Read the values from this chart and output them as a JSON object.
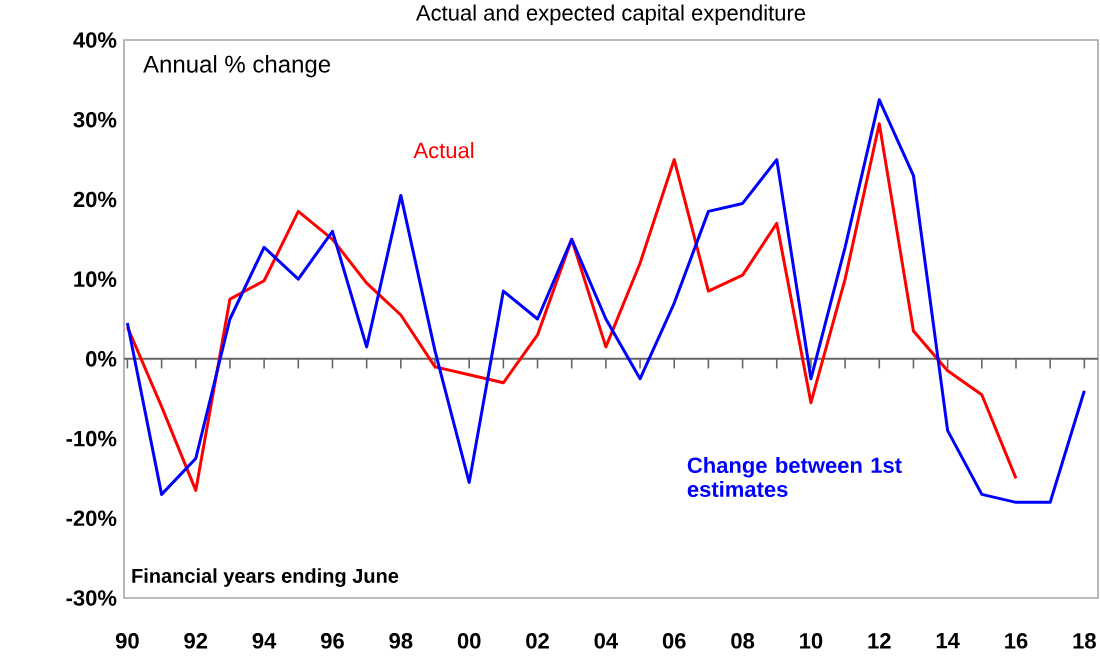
{
  "chart_data": {
    "type": "line",
    "title": "Actual and expected capital expenditure",
    "annotations": [
      "Annual % change",
      "Financial years ending June"
    ],
    "x": [
      1990,
      1991,
      1992,
      1993,
      1994,
      1995,
      1996,
      1997,
      1998,
      1999,
      2000,
      2001,
      2002,
      2003,
      2004,
      2005,
      2006,
      2007,
      2008,
      2009,
      2010,
      2011,
      2012,
      2013,
      2014,
      2015,
      2016,
      2017,
      2018
    ],
    "series": [
      {
        "name": "Actual",
        "color": "#ff0000",
        "values": [
          4,
          -6,
          -16.5,
          7.5,
          9.8,
          18.5,
          15,
          9.5,
          5.5,
          -1,
          -2,
          -3,
          3,
          15,
          1.5,
          12,
          25,
          8.5,
          10.5,
          17,
          -5.5,
          10,
          29.5,
          3.5,
          -1.5,
          -4.5,
          -15,
          null,
          null
        ]
      },
      {
        "name": "Change between 1st estimates",
        "color": "#0000ff",
        "values": [
          4.5,
          -17,
          -12.5,
          5,
          14,
          10,
          16,
          1.5,
          20.5,
          1,
          -15.5,
          8.5,
          5,
          15,
          5,
          -2.5,
          7,
          18.5,
          19.5,
          25,
          -2.5,
          14,
          32.5,
          23,
          -9,
          -17,
          -18,
          -18,
          -4
        ]
      }
    ],
    "xlim": [
      1989.9,
      2018.4
    ],
    "ylim": [
      -30,
      40
    ],
    "xticks": [
      {
        "value": 1990,
        "label": "90"
      },
      {
        "value": 1992,
        "label": "92"
      },
      {
        "value": 1994,
        "label": "94"
      },
      {
        "value": 1996,
        "label": "96"
      },
      {
        "value": 1998,
        "label": "98"
      },
      {
        "value": 2000,
        "label": "00"
      },
      {
        "value": 2002,
        "label": "02"
      },
      {
        "value": 2004,
        "label": "04"
      },
      {
        "value": 2006,
        "label": "06"
      },
      {
        "value": 2008,
        "label": "08"
      },
      {
        "value": 2010,
        "label": "10"
      },
      {
        "value": 2012,
        "label": "12"
      },
      {
        "value": 2014,
        "label": "14"
      },
      {
        "value": 2016,
        "label": "16"
      },
      {
        "value": 2018,
        "label": "18"
      }
    ],
    "yticks": [
      {
        "value": -30,
        "label": "-30%"
      },
      {
        "value": -20,
        "label": "-20%"
      },
      {
        "value": -10,
        "label": "-10%"
      },
      {
        "value": 0,
        "label": "0%"
      },
      {
        "value": 10,
        "label": "10%"
      },
      {
        "value": 20,
        "label": "20%"
      },
      {
        "value": 30,
        "label": "30%"
      },
      {
        "value": 40,
        "label": "40%"
      }
    ],
    "ref_lines": [
      {
        "axis": "y",
        "value": 0
      }
    ],
    "grid": false,
    "legend": false,
    "marker": "none",
    "line_style": "solid"
  }
}
